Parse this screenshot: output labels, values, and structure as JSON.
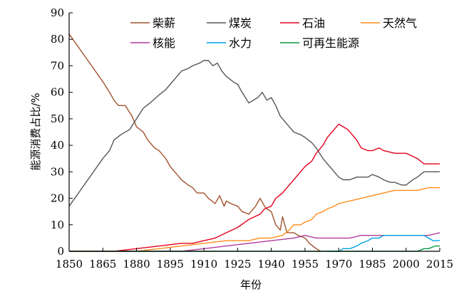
{
  "chart_data": {
    "type": "line",
    "xlabel": "年份",
    "ylabel": "能源消费占比/%",
    "xlim": [
      1850,
      2015
    ],
    "ylim": [
      0,
      90
    ],
    "xticks": [
      1850,
      1865,
      1880,
      1895,
      1910,
      1925,
      1940,
      1955,
      1970,
      1985,
      2000,
      2015
    ],
    "yticks": [
      0,
      10,
      20,
      30,
      40,
      50,
      60,
      70,
      80,
      90
    ],
    "grid": false,
    "legend_placement": "top",
    "series": [
      {
        "name": "柴薪",
        "color": "#a0522d",
        "points": [
          [
            1850,
            82
          ],
          [
            1855,
            76
          ],
          [
            1860,
            70
          ],
          [
            1865,
            64
          ],
          [
            1868,
            60
          ],
          [
            1870,
            57
          ],
          [
            1872,
            55
          ],
          [
            1875,
            55
          ],
          [
            1878,
            51
          ],
          [
            1880,
            47
          ],
          [
            1883,
            45
          ],
          [
            1885,
            42
          ],
          [
            1888,
            39
          ],
          [
            1890,
            38
          ],
          [
            1893,
            35
          ],
          [
            1895,
            32
          ],
          [
            1898,
            29
          ],
          [
            1900,
            27
          ],
          [
            1903,
            25
          ],
          [
            1905,
            24
          ],
          [
            1907,
            22
          ],
          [
            1910,
            22
          ],
          [
            1912,
            20
          ],
          [
            1915,
            18
          ],
          [
            1917,
            21
          ],
          [
            1919,
            17
          ],
          [
            1920,
            19
          ],
          [
            1922,
            18
          ],
          [
            1925,
            17
          ],
          [
            1927,
            15
          ],
          [
            1930,
            14
          ],
          [
            1933,
            17
          ],
          [
            1935,
            20
          ],
          [
            1937,
            17
          ],
          [
            1938,
            16
          ],
          [
            1940,
            15
          ],
          [
            1942,
            10
          ],
          [
            1944,
            8
          ],
          [
            1945,
            13
          ],
          [
            1947,
            7
          ],
          [
            1950,
            7
          ],
          [
            1952,
            6
          ],
          [
            1955,
            5
          ],
          [
            1957,
            3
          ],
          [
            1960,
            1
          ],
          [
            1962,
            0
          ]
        ]
      },
      {
        "name": "煤炭",
        "color": "#555555",
        "points": [
          [
            1850,
            17
          ],
          [
            1855,
            23
          ],
          [
            1860,
            29
          ],
          [
            1865,
            35
          ],
          [
            1868,
            38
          ],
          [
            1870,
            42
          ],
          [
            1873,
            44
          ],
          [
            1877,
            46
          ],
          [
            1880,
            50
          ],
          [
            1883,
            54
          ],
          [
            1886,
            56
          ],
          [
            1890,
            59
          ],
          [
            1893,
            61
          ],
          [
            1895,
            63
          ],
          [
            1898,
            66
          ],
          [
            1900,
            68
          ],
          [
            1903,
            69
          ],
          [
            1905,
            70
          ],
          [
            1908,
            71
          ],
          [
            1910,
            72
          ],
          [
            1912,
            72
          ],
          [
            1914,
            70
          ],
          [
            1916,
            71
          ],
          [
            1918,
            68
          ],
          [
            1920,
            66
          ],
          [
            1923,
            64
          ],
          [
            1925,
            63
          ],
          [
            1927,
            60
          ],
          [
            1930,
            56
          ],
          [
            1932,
            57
          ],
          [
            1934,
            58
          ],
          [
            1936,
            60
          ],
          [
            1938,
            57
          ],
          [
            1940,
            58
          ],
          [
            1942,
            55
          ],
          [
            1944,
            51
          ],
          [
            1946,
            49
          ],
          [
            1948,
            47
          ],
          [
            1950,
            45
          ],
          [
            1953,
            44
          ],
          [
            1955,
            43
          ],
          [
            1958,
            41
          ],
          [
            1960,
            39
          ],
          [
            1963,
            35
          ],
          [
            1965,
            33
          ],
          [
            1968,
            30
          ],
          [
            1970,
            28
          ],
          [
            1972,
            27
          ],
          [
            1975,
            27
          ],
          [
            1978,
            28
          ],
          [
            1980,
            28
          ],
          [
            1983,
            28
          ],
          [
            1985,
            29
          ],
          [
            1988,
            28
          ],
          [
            1990,
            27
          ],
          [
            1993,
            26
          ],
          [
            1995,
            26
          ],
          [
            1998,
            25
          ],
          [
            2000,
            25
          ],
          [
            2003,
            27
          ],
          [
            2005,
            28
          ],
          [
            2008,
            30
          ],
          [
            2010,
            30
          ],
          [
            2013,
            30
          ],
          [
            2015,
            30
          ]
        ]
      },
      {
        "name": "石油",
        "color": "#e3001b",
        "points": [
          [
            1850,
            0
          ],
          [
            1860,
            0
          ],
          [
            1870,
            0
          ],
          [
            1880,
            1
          ],
          [
            1890,
            2
          ],
          [
            1900,
            3
          ],
          [
            1905,
            3
          ],
          [
            1910,
            4
          ],
          [
            1915,
            5
          ],
          [
            1920,
            7
          ],
          [
            1925,
            9
          ],
          [
            1930,
            12
          ],
          [
            1935,
            14
          ],
          [
            1937,
            16
          ],
          [
            1940,
            17
          ],
          [
            1942,
            20
          ],
          [
            1945,
            22
          ],
          [
            1948,
            25
          ],
          [
            1950,
            27
          ],
          [
            1953,
            30
          ],
          [
            1955,
            32
          ],
          [
            1958,
            34
          ],
          [
            1960,
            37
          ],
          [
            1963,
            40
          ],
          [
            1965,
            43
          ],
          [
            1968,
            46
          ],
          [
            1970,
            48
          ],
          [
            1972,
            47
          ],
          [
            1974,
            46
          ],
          [
            1976,
            44
          ],
          [
            1978,
            42
          ],
          [
            1980,
            39
          ],
          [
            1983,
            38
          ],
          [
            1985,
            38
          ],
          [
            1988,
            39
          ],
          [
            1990,
            38
          ],
          [
            1995,
            37
          ],
          [
            2000,
            37
          ],
          [
            2005,
            35
          ],
          [
            2008,
            33
          ],
          [
            2010,
            33
          ],
          [
            2015,
            33
          ]
        ]
      },
      {
        "name": "天然气",
        "color": "#ff8c1a",
        "points": [
          [
            1850,
            0
          ],
          [
            1880,
            0
          ],
          [
            1890,
            1
          ],
          [
            1900,
            2
          ],
          [
            1910,
            3
          ],
          [
            1920,
            4
          ],
          [
            1930,
            4
          ],
          [
            1935,
            5
          ],
          [
            1940,
            5
          ],
          [
            1945,
            6
          ],
          [
            1948,
            8
          ],
          [
            1950,
            10
          ],
          [
            1953,
            10
          ],
          [
            1955,
            11
          ],
          [
            1958,
            12
          ],
          [
            1960,
            14
          ],
          [
            1963,
            15
          ],
          [
            1965,
            16
          ],
          [
            1968,
            17
          ],
          [
            1970,
            18
          ],
          [
            1975,
            19
          ],
          [
            1980,
            20
          ],
          [
            1985,
            21
          ],
          [
            1990,
            22
          ],
          [
            1995,
            23
          ],
          [
            2000,
            23
          ],
          [
            2005,
            23
          ],
          [
            2010,
            24
          ],
          [
            2015,
            24
          ]
        ]
      },
      {
        "name": "核能",
        "color": "#b03c9e",
        "points": [
          [
            1850,
            0
          ],
          [
            1900,
            0
          ],
          [
            1910,
            1
          ],
          [
            1920,
            2
          ],
          [
            1930,
            3
          ],
          [
            1940,
            4
          ],
          [
            1950,
            5
          ],
          [
            1955,
            6
          ],
          [
            1960,
            5
          ],
          [
            1965,
            5
          ],
          [
            1970,
            5
          ],
          [
            1975,
            5
          ],
          [
            1980,
            6
          ],
          [
            1985,
            6
          ],
          [
            1990,
            6
          ],
          [
            1995,
            6
          ],
          [
            2000,
            6
          ],
          [
            2005,
            6
          ],
          [
            2010,
            6
          ],
          [
            2015,
            7
          ]
        ]
      },
      {
        "name": "水力",
        "color": "#00a0e0",
        "points": [
          [
            1965,
            0
          ],
          [
            1970,
            0
          ],
          [
            1972,
            1
          ],
          [
            1975,
            1
          ],
          [
            1978,
            2
          ],
          [
            1980,
            3
          ],
          [
            1983,
            4
          ],
          [
            1985,
            5
          ],
          [
            1988,
            5
          ],
          [
            1990,
            6
          ],
          [
            1995,
            6
          ],
          [
            1998,
            6
          ],
          [
            2000,
            6
          ],
          [
            2003,
            6
          ],
          [
            2005,
            6
          ],
          [
            2008,
            6
          ],
          [
            2010,
            5
          ],
          [
            2012,
            4
          ],
          [
            2015,
            4
          ]
        ]
      },
      {
        "name": "可再生能源",
        "color": "#009944",
        "points": [
          [
            1850,
            0
          ],
          [
            1960,
            0
          ],
          [
            1970,
            0
          ],
          [
            1980,
            0
          ],
          [
            1990,
            0
          ],
          [
            2000,
            0
          ],
          [
            2005,
            0
          ],
          [
            2008,
            1
          ],
          [
            2010,
            1
          ],
          [
            2013,
            2
          ],
          [
            2015,
            2
          ]
        ]
      }
    ]
  }
}
